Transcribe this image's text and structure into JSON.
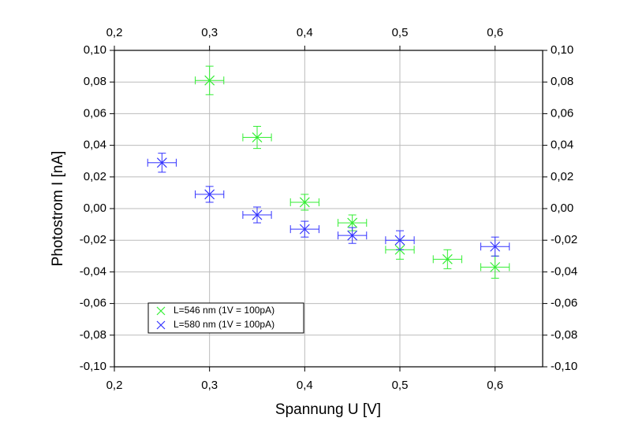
{
  "chart_data": {
    "type": "scatter",
    "x_label": "Spannung U [V]",
    "y_label": "Photostrom I [nA]",
    "xlim": [
      0.2,
      0.65
    ],
    "ylim": [
      -0.1,
      0.1
    ],
    "xticks": [
      {
        "value": 0.2,
        "label": "0,2"
      },
      {
        "value": 0.3,
        "label": "0,3"
      },
      {
        "value": 0.4,
        "label": "0,4"
      },
      {
        "value": 0.5,
        "label": "0,5"
      },
      {
        "value": 0.6,
        "label": "0,6"
      }
    ],
    "yticks": [
      {
        "value": -0.1,
        "label": "-0,10"
      },
      {
        "value": -0.08,
        "label": "-0,08"
      },
      {
        "value": -0.06,
        "label": "-0,06"
      },
      {
        "value": -0.04,
        "label": "-0,04"
      },
      {
        "value": -0.02,
        "label": "-0,02"
      },
      {
        "value": 0,
        "label": "0,00"
      },
      {
        "value": 0.02,
        "label": "0,02"
      },
      {
        "value": 0.04,
        "label": "0,04"
      },
      {
        "value": 0.06,
        "label": "0,06"
      },
      {
        "value": 0.08,
        "label": "0,08"
      },
      {
        "value": 0.1,
        "label": "0,10"
      }
    ],
    "grid": true,
    "legend": "lower left",
    "series": [
      {
        "name": "L=546 nm (1V = 100pA)",
        "color": "#33ee33",
        "x": [
          0.3,
          0.35,
          0.4,
          0.45,
          0.5,
          0.55,
          0.6
        ],
        "values": [
          0.081,
          0.045,
          0.004,
          -0.009,
          -0.026,
          -0.032,
          -0.037
        ],
        "yerr": [
          0.009,
          0.007,
          0.005,
          0.005,
          0.006,
          0.006,
          0.007
        ],
        "xerr": [
          0.015,
          0.015,
          0.015,
          0.015,
          0.015,
          0.015,
          0.015
        ]
      },
      {
        "name": "L=580 nm (1V = 100pA)",
        "color": "#3333ff",
        "x": [
          0.25,
          0.3,
          0.35,
          0.4,
          0.45,
          0.5,
          0.6
        ],
        "values": [
          0.029,
          0.009,
          -0.004,
          -0.013,
          -0.017,
          -0.02,
          -0.024
        ],
        "yerr": [
          0.006,
          0.005,
          0.005,
          0.005,
          0.005,
          0.006,
          0.006
        ],
        "xerr": [
          0.015,
          0.015,
          0.015,
          0.015,
          0.015,
          0.015,
          0.015
        ]
      }
    ]
  }
}
